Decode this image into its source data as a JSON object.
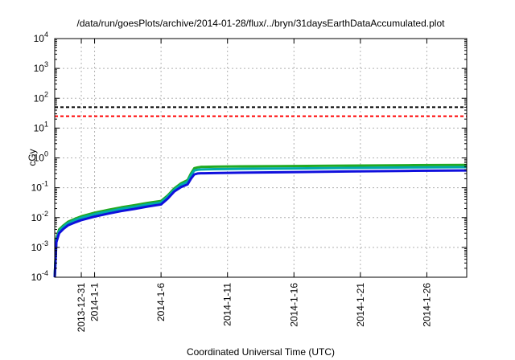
{
  "chart_data": {
    "type": "line",
    "title": "/data/run/goesPlots/archive/2014-01-28/flux/../bryn/31daysEarthDataAccumulated.plot",
    "xlabel": "Coordinated Universal Time (UTC)",
    "ylabel": "cGy",
    "y_scale": "log",
    "ylim": [
      0.0001,
      10000
    ],
    "xlim": [
      "2013-12-29",
      "2014-01-29"
    ],
    "grid": true,
    "legend": "none",
    "y_ticks": [
      {
        "base": "10",
        "exp": "-4",
        "value": 0.0001
      },
      {
        "base": "10",
        "exp": "-3",
        "value": 0.001
      },
      {
        "base": "10",
        "exp": "-2",
        "value": 0.01
      },
      {
        "base": "10",
        "exp": "-1",
        "value": 0.1
      },
      {
        "base": "10",
        "exp": "0",
        "value": 1
      },
      {
        "base": "10",
        "exp": "1",
        "value": 10
      },
      {
        "base": "10",
        "exp": "2",
        "value": 100
      },
      {
        "base": "10",
        "exp": "3",
        "value": 1000
      },
      {
        "base": "10",
        "exp": "4",
        "value": 10000
      }
    ],
    "x_ticks": [
      {
        "label": "2013-12-31",
        "date": "2013-12-31"
      },
      {
        "label": "2014-1-1",
        "date": "2014-01-01"
      },
      {
        "label": "2014-1-6",
        "date": "2014-01-06"
      },
      {
        "label": "2014-1-11",
        "date": "2014-01-11"
      },
      {
        "label": "2014-1-16",
        "date": "2014-01-16"
      },
      {
        "label": "2014-1-21",
        "date": "2014-01-21"
      },
      {
        "label": "2014-1-26",
        "date": "2014-01-26"
      }
    ],
    "reference_lines": [
      {
        "y": 50,
        "color": "#000000",
        "style": "dashed"
      },
      {
        "y": 25,
        "color": "#ff0000",
        "style": "dashed"
      }
    ],
    "series": [
      {
        "color": "#22aa22",
        "x": [
          "2013-12-29",
          "2013-12-29T03:00",
          "2013-12-29T08:00",
          "2013-12-29T16:00",
          "2013-12-30",
          "2013-12-30T12:00",
          "2013-12-31",
          "2014-01-01",
          "2014-01-02",
          "2014-01-03",
          "2014-01-04",
          "2014-01-05",
          "2014-01-06",
          "2014-01-06T12:00",
          "2014-01-07",
          "2014-01-07T12:00",
          "2014-01-08",
          "2014-01-08T06:00",
          "2014-01-08T12:00",
          "2014-01-08T18:00",
          "2014-01-09",
          "2014-01-10",
          "2014-01-12",
          "2014-01-15",
          "2014-01-20",
          "2014-01-25",
          "2014-01-29"
        ],
        "y": [
          0.0001,
          0.002,
          0.004,
          0.0055,
          0.0072,
          0.009,
          0.011,
          0.0145,
          0.018,
          0.022,
          0.026,
          0.031,
          0.036,
          0.055,
          0.095,
          0.14,
          0.18,
          0.3,
          0.45,
          0.48,
          0.5,
          0.51,
          0.52,
          0.53,
          0.55,
          0.57,
          0.58
        ]
      },
      {
        "color": "#00aaaa",
        "x": [
          "2013-12-29",
          "2013-12-29T03:00",
          "2013-12-29T08:00",
          "2013-12-29T16:00",
          "2013-12-30",
          "2013-12-30T12:00",
          "2013-12-31",
          "2014-01-01",
          "2014-01-02",
          "2014-01-03",
          "2014-01-04",
          "2014-01-05",
          "2014-01-06",
          "2014-01-06T12:00",
          "2014-01-07",
          "2014-01-07T12:00",
          "2014-01-08",
          "2014-01-08T06:00",
          "2014-01-08T12:00",
          "2014-01-08T18:00",
          "2014-01-09",
          "2014-01-10",
          "2014-01-12",
          "2014-01-15",
          "2014-01-20",
          "2014-01-25",
          "2014-01-29"
        ],
        "y": [
          0.0001,
          0.0018,
          0.0035,
          0.005,
          0.0065,
          0.0082,
          0.0098,
          0.013,
          0.016,
          0.0195,
          0.023,
          0.0275,
          0.032,
          0.05,
          0.085,
          0.125,
          0.16,
          0.26,
          0.38,
          0.4,
          0.41,
          0.42,
          0.43,
          0.44,
          0.46,
          0.48,
          0.49
        ]
      },
      {
        "color": "#1010dd",
        "x": [
          "2013-12-29",
          "2013-12-29T03:00",
          "2013-12-29T08:00",
          "2013-12-29T16:00",
          "2013-12-30",
          "2013-12-30T12:00",
          "2013-12-31",
          "2014-01-01",
          "2014-01-02",
          "2014-01-03",
          "2014-01-04",
          "2014-01-05",
          "2014-01-06",
          "2014-01-06T12:00",
          "2014-01-07",
          "2014-01-07T12:00",
          "2014-01-08",
          "2014-01-08T06:00",
          "2014-01-08T12:00",
          "2014-01-08T18:00",
          "2014-01-09",
          "2014-01-10",
          "2014-01-12",
          "2014-01-15",
          "2014-01-20",
          "2014-01-25",
          "2014-01-29"
        ],
        "y": [
          0.0001,
          0.0015,
          0.003,
          0.0042,
          0.0055,
          0.0068,
          0.0082,
          0.0108,
          0.0135,
          0.0165,
          0.0195,
          0.0235,
          0.0275,
          0.043,
          0.075,
          0.105,
          0.13,
          0.2,
          0.28,
          0.3,
          0.305,
          0.31,
          0.32,
          0.33,
          0.35,
          0.37,
          0.38
        ]
      }
    ]
  }
}
